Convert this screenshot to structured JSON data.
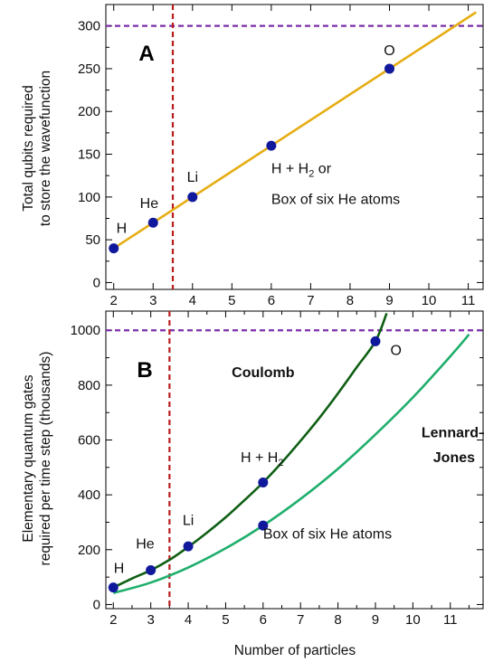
{
  "chart_data": [
    {
      "type": "line",
      "panel_label": "A",
      "xlabel": "",
      "ylabel": [
        "Total qubits required",
        "to store the wavefunction"
      ],
      "xlim": [
        1.8,
        11.4
      ],
      "ylim": [
        -8,
        325
      ],
      "xticks": [
        2,
        3,
        4,
        5,
        6,
        7,
        8,
        9,
        10,
        11
      ],
      "yticks": [
        0,
        50,
        100,
        150,
        200,
        250,
        300
      ],
      "threshold_y": 300,
      "threshold_color": "#7b2fa8",
      "vline_x": 3.5,
      "vline_color": "#b81c1c",
      "series": [
        {
          "kind": "line",
          "color": "#e6ad14",
          "x": [
            2,
            11.2
          ],
          "y": [
            40,
            316
          ]
        },
        {
          "kind": "points",
          "color": "#10189c",
          "x": [
            2,
            3,
            4,
            6,
            9
          ],
          "y": [
            40,
            70,
            100,
            160,
            250
          ]
        }
      ],
      "annotations": [
        {
          "text": "H",
          "x": 2.2,
          "y": 58,
          "sub": ""
        },
        {
          "text": "He",
          "x": 2.9,
          "y": 87,
          "sub": ""
        },
        {
          "text": "Li",
          "x": 4.0,
          "y": 118,
          "sub": ""
        },
        {
          "text": "O",
          "x": 9.0,
          "y": 266,
          "sub": ""
        },
        {
          "text": "H + H",
          "x": 6.0,
          "y": 128,
          "sub": "2",
          "suffix": " or"
        },
        {
          "text": "Box of six He atoms",
          "x": 6.0,
          "y": 92,
          "sub": ""
        }
      ]
    },
    {
      "type": "line",
      "panel_label": "B",
      "xlabel": "Number of particles",
      "ylabel": [
        "Elementary quantum gates",
        "required per time step (thousands)"
      ],
      "xlim": [
        1.8,
        11.9
      ],
      "ylim": [
        -15,
        1070
      ],
      "xticks": [
        2,
        2.5,
        3,
        3.5,
        4,
        4.5,
        5,
        5.5,
        6,
        6.5,
        7,
        7.5,
        8,
        8.5,
        9,
        9.5,
        10,
        10.5,
        11,
        11.5
      ],
      "yticks": [
        0,
        200,
        400,
        600,
        800,
        1000
      ],
      "threshold_y": 1000,
      "threshold_color": "#7b2fa8",
      "vline_x": 3.5,
      "vline_color": "#b81c1c",
      "series": [
        {
          "name": "Coulomb",
          "kind": "line",
          "color": "#0f5f14",
          "x": [
            2,
            2.5,
            3,
            3.5,
            4,
            4.5,
            5,
            5.5,
            6,
            6.5,
            7,
            7.5,
            8,
            8.5,
            9,
            9.3
          ],
          "y": [
            62,
            95,
            125,
            163,
            210,
            262,
            318,
            380,
            445,
            518,
            597,
            680,
            770,
            865,
            960,
            1062
          ]
        },
        {
          "name": "Lennard–Jones",
          "kind": "line",
          "color": "#1fae6c",
          "x": [
            2,
            3,
            4,
            5,
            6,
            7,
            8,
            9,
            10,
            11,
            11.5
          ],
          "y": [
            42,
            80,
            135,
            205,
            288,
            385,
            495,
            620,
            755,
            905,
            985
          ]
        },
        {
          "kind": "points",
          "color": "#10189c",
          "x": [
            2,
            3,
            4,
            6,
            6,
            9
          ],
          "y": [
            62,
            125,
            212,
            445,
            288,
            960
          ]
        }
      ],
      "annotations": [
        {
          "text": "H",
          "x": 2.15,
          "y": 115,
          "sub": ""
        },
        {
          "text": "He",
          "x": 2.85,
          "y": 205,
          "sub": ""
        },
        {
          "text": "Li",
          "x": 4.0,
          "y": 290,
          "sub": ""
        },
        {
          "text": "O",
          "x": 9.55,
          "y": 910,
          "sub": ""
        },
        {
          "text": "H + H",
          "x": 5.4,
          "y": 520,
          "sub": "2"
        },
        {
          "text": "Box of six He atoms",
          "x": 6.0,
          "y": 240,
          "sub": ""
        }
      ],
      "curve_labels": [
        {
          "text": "Coulomb",
          "x": 6.0,
          "y": 830
        },
        {
          "text": "Lennard–",
          "x": 11.1,
          "y": 610
        },
        {
          "text": "Jones",
          "x": 11.1,
          "y": 520
        }
      ]
    }
  ]
}
